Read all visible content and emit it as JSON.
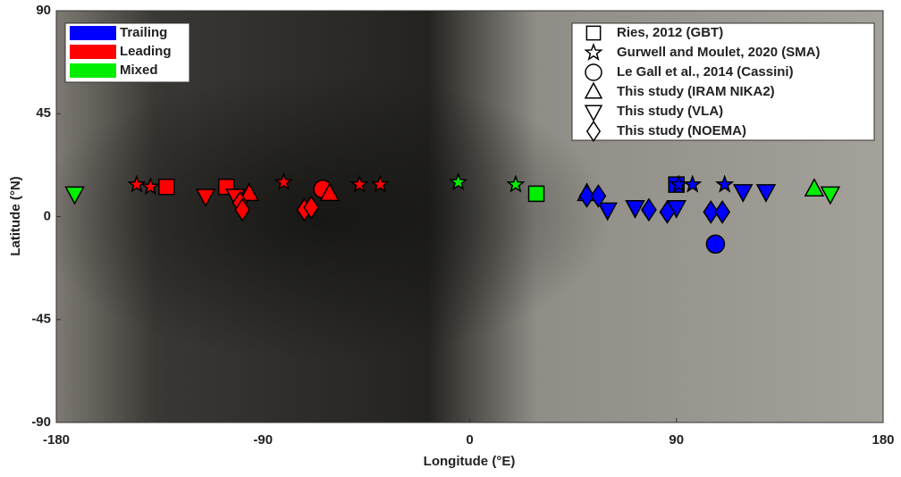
{
  "chart_data": {
    "type": "scatter",
    "x_label": "Longitude (°E)",
    "y_label": "Latitude (°N)",
    "xlim": [
      -180,
      180
    ],
    "ylim": [
      -90,
      90
    ],
    "xticks": [
      -180,
      -90,
      0,
      90,
      180
    ],
    "yticks": [
      90,
      45,
      0,
      -45,
      -90
    ],
    "groups": [
      {
        "name": "Trailing",
        "color": "#0000ff"
      },
      {
        "name": "Leading",
        "color": "#ff0000"
      },
      {
        "name": "Mixed",
        "color": "#00ee00"
      }
    ],
    "series": [
      {
        "name": "Ries, 2012 (GBT)",
        "marker": "square",
        "x": [
          -132,
          -106,
          29,
          90
        ],
        "y": [
          13,
          13,
          10,
          14
        ],
        "colors": [
          "#ff0000",
          "#ff0000",
          "#00ee00",
          "#0000ff"
        ]
      },
      {
        "name": "Gurwell and Moulet, 2020 (SMA)",
        "marker": "star",
        "x": [
          -145,
          -139,
          -81,
          -48,
          -39,
          -5,
          20,
          91,
          97,
          111
        ],
        "y": [
          14,
          13,
          15,
          14,
          14,
          15,
          14,
          14,
          14,
          14
        ],
        "colors": [
          "#ff0000",
          "#ff0000",
          "#ff0000",
          "#ff0000",
          "#ff0000",
          "#00ee00",
          "#00ee00",
          "#0000ff",
          "#0000ff",
          "#0000ff"
        ]
      },
      {
        "name": "Le Gall et al., 2014 (Cassini)",
        "marker": "circle",
        "x": [
          -64,
          107
        ],
        "y": [
          12,
          -12
        ],
        "colors": [
          "#ff0000",
          "#0000ff"
        ]
      },
      {
        "name": "This study (IRAM NIKA2)",
        "marker": "triangle-up",
        "x": [
          -96,
          -61,
          51,
          150
        ],
        "y": [
          10,
          10,
          10,
          12
        ],
        "colors": [
          "#ff0000",
          "#ff0000",
          "#0000ff",
          "#00ee00"
        ]
      },
      {
        "name": "This study (VLA)",
        "marker": "triangle-down",
        "x": [
          -172,
          -115,
          -102,
          60,
          72,
          90,
          119,
          129,
          157
        ],
        "y": [
          10,
          9,
          9,
          3,
          4,
          4,
          11,
          11,
          10
        ],
        "colors": [
          "#00ee00",
          "#ff0000",
          "#ff0000",
          "#0000ff",
          "#0000ff",
          "#0000ff",
          "#0000ff",
          "#0000ff",
          "#00ee00"
        ]
      },
      {
        "name": "This study (NOEMA)",
        "marker": "diamond",
        "x": [
          -100,
          -99,
          -72,
          -69,
          51,
          56,
          78,
          86,
          105,
          110
        ],
        "y": [
          6,
          3,
          3,
          4,
          9,
          9,
          3,
          2,
          2,
          2
        ],
        "colors": [
          "#ff0000",
          "#ff0000",
          "#ff0000",
          "#ff0000",
          "#0000ff",
          "#0000ff",
          "#0000ff",
          "#0000ff",
          "#0000ff",
          "#0000ff"
        ]
      }
    ]
  }
}
